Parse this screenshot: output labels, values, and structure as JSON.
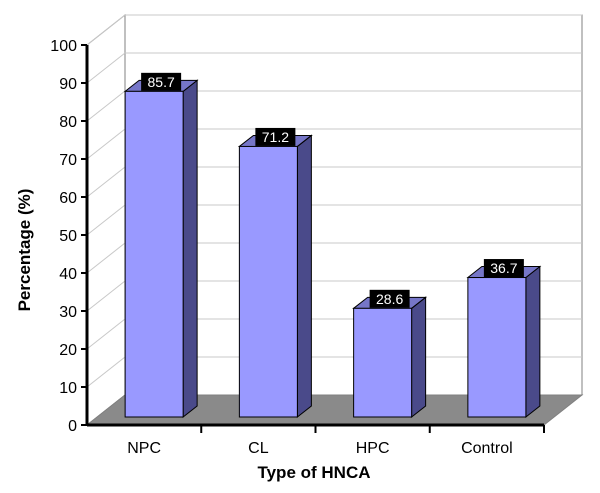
{
  "chart_data": {
    "type": "bar",
    "title": "",
    "xlabel": "Type of HNCA",
    "ylabel": "Percentage (%)",
    "categories": [
      "NPC",
      "CL",
      "HPC",
      "Control"
    ],
    "values": [
      85.7,
      71.2,
      28.6,
      36.7
    ],
    "data_labels": [
      "85.7",
      "71.2",
      "28.6",
      "36.7"
    ],
    "ylim": [
      0,
      100
    ],
    "yticks": [
      "0",
      "10",
      "20",
      "30",
      "40",
      "50",
      "60",
      "70",
      "80",
      "90",
      "100"
    ],
    "grid": true,
    "legend": "none",
    "style": "3d-bar"
  },
  "colors": {
    "bar_front": "#9999ff",
    "bar_side": "#4a4a8a",
    "bar_top": "#7676c8",
    "floor": "#8a8a8a",
    "grid": "#c8c8c8",
    "label_bg": "#000000",
    "label_text": "#ffffff"
  }
}
